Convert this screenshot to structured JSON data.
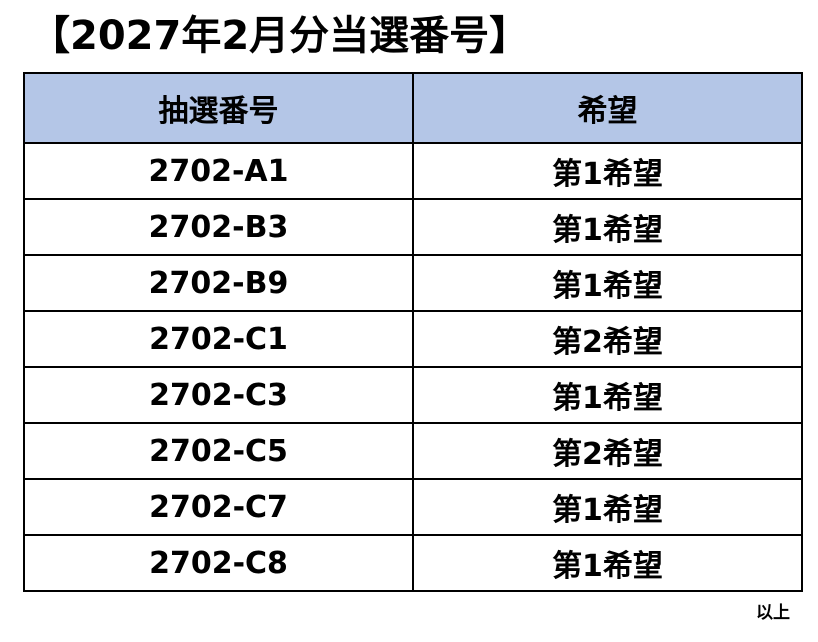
{
  "title": "【2027年2月分当選番号】",
  "table": {
    "headers": [
      "抽選番号",
      "希望"
    ],
    "rows": [
      [
        "2702-A1",
        "第1希望"
      ],
      [
        "2702-B3",
        "第1希望"
      ],
      [
        "2702-B9",
        "第1希望"
      ],
      [
        "2702-C1",
        "第2希望"
      ],
      [
        "2702-C3",
        "第1希望"
      ],
      [
        "2702-C5",
        "第2希望"
      ],
      [
        "2702-C7",
        "第1希望"
      ],
      [
        "2702-C8",
        "第1希望"
      ]
    ]
  },
  "closing": "以上",
  "colors": {
    "header_background": "#b4c6e7",
    "border": "#000000"
  }
}
